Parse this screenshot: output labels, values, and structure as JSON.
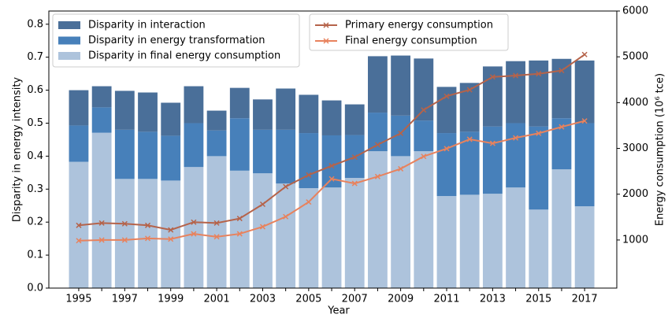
{
  "chart_data": {
    "type": "bar",
    "xlabel": "Year",
    "ylabel": "Disparity in energy intensity",
    "y2label": "Energy consumption (10⁶ tce)",
    "x": [
      1995,
      1996,
      1997,
      1998,
      1999,
      2000,
      2001,
      2002,
      2003,
      2004,
      2005,
      2006,
      2007,
      2008,
      2009,
      2010,
      2011,
      2012,
      2013,
      2014,
      2015,
      2016,
      2017
    ],
    "xlim": [
      1993.7,
      2018.4
    ],
    "xticks": [
      1995,
      1997,
      1999,
      2001,
      2003,
      2005,
      2007,
      2009,
      2011,
      2013,
      2015,
      2017
    ],
    "ylim": [
      0,
      0.84
    ],
    "yticks": [
      0.0,
      0.1,
      0.2,
      0.3,
      0.4,
      0.5,
      0.6,
      0.7,
      0.8
    ],
    "y2lim": [
      -50,
      6000
    ],
    "y2ticks": [
      1000,
      2000,
      3000,
      4000,
      5000,
      6000
    ],
    "series": [
      {
        "name": "Disparity in final energy consumption",
        "type": "bar",
        "color": "#adc3dc",
        "values": [
          0.383,
          0.471,
          0.331,
          0.331,
          0.326,
          0.367,
          0.4,
          0.356,
          0.348,
          0.317,
          0.303,
          0.305,
          0.334,
          0.415,
          0.4,
          0.415,
          0.279,
          0.283,
          0.286,
          0.305,
          0.238,
          0.36,
          0.248
        ]
      },
      {
        "name": "Disparity in energy transformation",
        "type": "bar",
        "color": "#4780ba",
        "values": [
          0.11,
          0.077,
          0.149,
          0.143,
          0.136,
          0.133,
          0.078,
          0.159,
          0.132,
          0.163,
          0.167,
          0.158,
          0.13,
          0.117,
          0.123,
          0.093,
          0.191,
          0.191,
          0.204,
          0.195,
          0.252,
          0.155,
          0.252
        ]
      },
      {
        "name": "Disparity in interaction",
        "type": "bar",
        "color": "#4a6f99",
        "values": [
          0.107,
          0.064,
          0.118,
          0.119,
          0.1,
          0.112,
          0.06,
          0.092,
          0.092,
          0.125,
          0.116,
          0.106,
          0.093,
          0.171,
          0.182,
          0.188,
          0.14,
          0.148,
          0.182,
          0.188,
          0.2,
          0.18,
          0.19
        ]
      },
      {
        "name": "Primary energy consumption",
        "type": "line",
        "axis": "y2",
        "color": "#b5634a",
        "values": [
          1320,
          1370,
          1355,
          1320,
          1220,
          1390,
          1370,
          1470,
          1780,
          2165,
          2420,
          2620,
          2810,
          3080,
          3330,
          3840,
          4140,
          4280,
          4560,
          4590,
          4630,
          4700,
          5050
        ]
      },
      {
        "name": "Final energy consumption",
        "type": "line",
        "axis": "y2",
        "color": "#e8825d",
        "values": [
          985,
          1000,
          1000,
          1035,
          1020,
          1135,
          1070,
          1135,
          1290,
          1510,
          1830,
          2335,
          2235,
          2385,
          2555,
          2825,
          2995,
          3200,
          3110,
          3230,
          3330,
          3470,
          3600
        ]
      }
    ]
  }
}
